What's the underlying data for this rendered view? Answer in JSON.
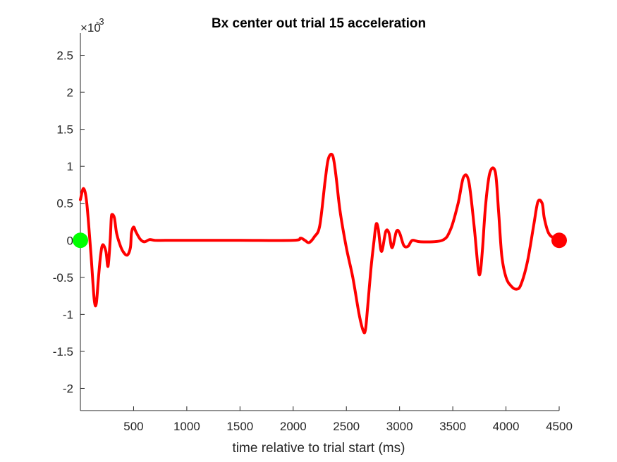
{
  "chart_data": {
    "type": "line",
    "title": "Bx  center out trial 15 acceleration",
    "xlabel": "time relative to trial start (ms)",
    "ylabel": "",
    "y_exponent_base": "×10",
    "y_exponent_power": "-3",
    "xlim": [
      0,
      4500
    ],
    "ylim": [
      -2.3,
      2.8
    ],
    "xticks": [
      500,
      1000,
      1500,
      2000,
      2500,
      3000,
      3500,
      4000,
      4500
    ],
    "xtick_labels": [
      "500",
      "1000",
      "1500",
      "2000",
      "2500",
      "3000",
      "3500",
      "4000",
      "4500"
    ],
    "yticks": [
      2.5,
      2,
      1.5,
      1,
      0.5,
      0,
      -0.5,
      -1,
      -1.5,
      -2
    ],
    "ytick_labels": [
      "2.5",
      "2",
      "1.5",
      "1",
      "0.5",
      "0",
      "-0.5",
      "-1",
      "-1.5",
      "-2"
    ],
    "grid": false,
    "line_color": "#ff0000",
    "start_marker": {
      "x": 0,
      "y": 0,
      "color": "#00ff00"
    },
    "end_marker": {
      "x": 4500,
      "y": 0,
      "color": "#ff0000"
    },
    "series": [
      {
        "x": [
          0,
          30,
          60,
          100,
          130,
          150,
          170,
          190,
          210,
          240,
          260,
          280,
          290,
          300,
          320,
          340,
          370,
          400,
          440,
          470,
          480,
          500,
          520,
          560,
          600,
          650,
          700,
          800,
          1000,
          1500,
          2000,
          2070,
          2110,
          2150,
          2200,
          2250,
          2300,
          2330,
          2370,
          2400,
          2440,
          2500,
          2560,
          2620,
          2660,
          2680,
          2700,
          2730,
          2760,
          2780,
          2800,
          2830,
          2870,
          2900,
          2930,
          2970,
          3000,
          3040,
          3080,
          3120,
          3200,
          3400,
          3480,
          3550,
          3600,
          3650,
          3700,
          3740,
          3760,
          3780,
          3810,
          3850,
          3900,
          3930,
          3960,
          4000,
          4050,
          4100,
          4140,
          4200,
          4260,
          4300,
          4340,
          4360,
          4400,
          4450,
          4500
        ],
        "y": [
          0.55,
          0.7,
          0.5,
          -0.2,
          -0.8,
          -0.85,
          -0.5,
          -0.2,
          -0.06,
          -0.15,
          -0.35,
          0.0,
          0.3,
          0.35,
          0.3,
          0.1,
          -0.05,
          -0.15,
          -0.2,
          -0.1,
          0.1,
          0.18,
          0.12,
          0.02,
          -0.02,
          0.01,
          0.0,
          0.0,
          0.0,
          0.0,
          0.0,
          0.03,
          0.0,
          -0.03,
          0.05,
          0.2,
          0.8,
          1.1,
          1.15,
          0.9,
          0.4,
          -0.1,
          -0.5,
          -1.0,
          -1.23,
          -1.2,
          -0.9,
          -0.4,
          0.0,
          0.22,
          0.15,
          -0.15,
          0.12,
          0.1,
          -0.1,
          0.12,
          0.1,
          -0.07,
          -0.08,
          0.0,
          -0.02,
          0.0,
          0.15,
          0.5,
          0.85,
          0.8,
          0.2,
          -0.4,
          -0.42,
          -0.1,
          0.5,
          0.92,
          0.92,
          0.4,
          -0.2,
          -0.5,
          -0.62,
          -0.66,
          -0.6,
          -0.3,
          0.2,
          0.52,
          0.5,
          0.3,
          0.1,
          0.03,
          0.0
        ]
      }
    ]
  }
}
